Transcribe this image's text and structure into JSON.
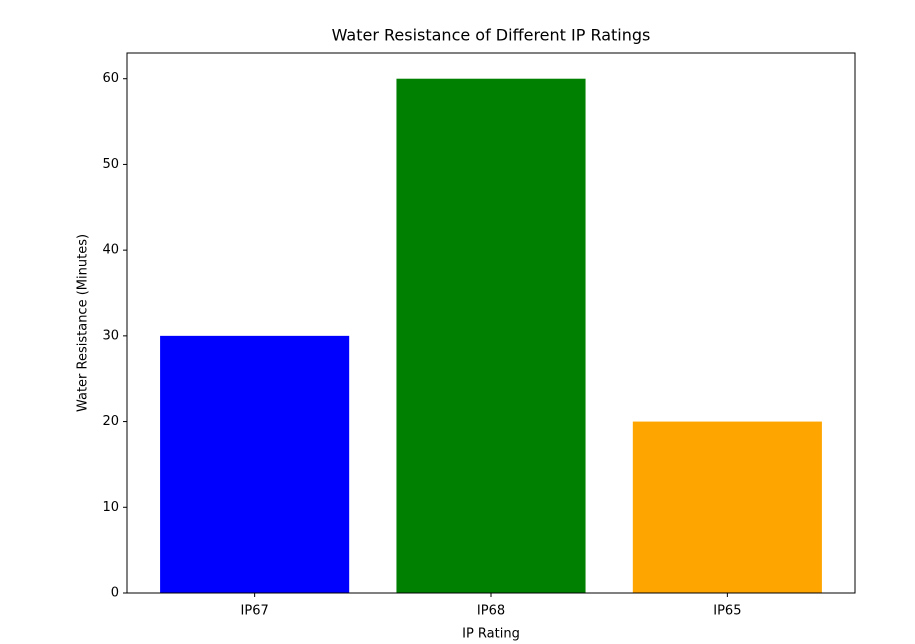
{
  "chart_data": {
    "type": "bar",
    "title": "Water Resistance of Different IP Ratings",
    "x_label": "IP Rating",
    "y_label": "Water Resistance (Minutes)",
    "categories": [
      "IP67",
      "IP68",
      "IP65"
    ],
    "values": [
      30,
      60,
      20
    ],
    "colors": [
      "#0000ff",
      "#008000",
      "#ffa500"
    ],
    "ylim": [
      0,
      63
    ],
    "yticks": [
      0,
      10,
      20,
      30,
      40,
      50,
      60
    ],
    "grid": false
  }
}
